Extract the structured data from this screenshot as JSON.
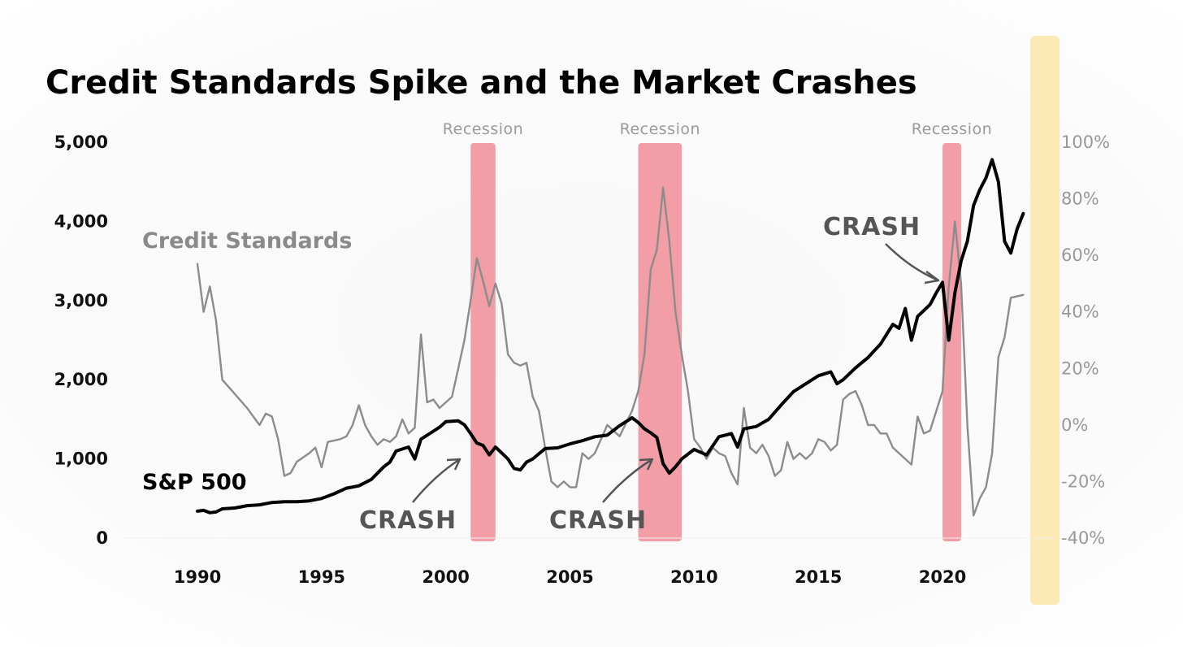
{
  "chart_data": {
    "type": "line",
    "title": "Credit Standards Spike and the Market Crashes",
    "x_ticks": [
      "1990",
      "1995",
      "2000",
      "2005",
      "2010",
      "2015",
      "2020"
    ],
    "y_left_ticks": [
      "0",
      "1,000",
      "2,000",
      "3,000",
      "4,000",
      "5,000"
    ],
    "y_left_values": [
      0,
      1000,
      2000,
      3000,
      4000,
      5000
    ],
    "ylim_left": [
      0,
      5000
    ],
    "y_right_ticks": [
      "-40%",
      "-20%",
      "0%",
      "20%",
      "40%",
      "60%",
      "80%",
      "100%"
    ],
    "y_right_values": [
      -40,
      -20,
      0,
      20,
      40,
      60,
      80,
      100
    ],
    "ylim_right": [
      -40,
      100
    ],
    "xlim": [
      1988,
      2023.5
    ],
    "grid": false,
    "recessions": [
      {
        "label": "Recession",
        "start": 2001.0,
        "end": 2002.0
      },
      {
        "label": "Recession",
        "start": 2007.75,
        "end": 2009.5
      },
      {
        "label": "Recession",
        "start": 2020.0,
        "end": 2020.75
      }
    ],
    "series": [
      {
        "name": "Credit Standards",
        "axis": "right",
        "color": "#8c8c8c",
        "points": [
          [
            1990.0,
            57
          ],
          [
            1990.25,
            40
          ],
          [
            1990.5,
            49
          ],
          [
            1990.75,
            37
          ],
          [
            1991.0,
            16
          ],
          [
            1991.5,
            11
          ],
          [
            1992.0,
            6
          ],
          [
            1992.5,
            0
          ],
          [
            1992.75,
            4
          ],
          [
            1993.0,
            3
          ],
          [
            1993.25,
            -5
          ],
          [
            1993.5,
            -18
          ],
          [
            1993.75,
            -17
          ],
          [
            1994.0,
            -13
          ],
          [
            1994.5,
            -10
          ],
          [
            1994.75,
            -8
          ],
          [
            1995.0,
            -15
          ],
          [
            1995.25,
            -6
          ],
          [
            1995.75,
            -5
          ],
          [
            1996.0,
            -4
          ],
          [
            1996.25,
            0
          ],
          [
            1996.5,
            7
          ],
          [
            1996.75,
            0
          ],
          [
            1997.0,
            -4
          ],
          [
            1997.25,
            -7
          ],
          [
            1997.5,
            -5
          ],
          [
            1997.75,
            -6
          ],
          [
            1998.0,
            -4
          ],
          [
            1998.25,
            2
          ],
          [
            1998.5,
            -3
          ],
          [
            1998.75,
            -1
          ],
          [
            1999.0,
            32
          ],
          [
            1999.25,
            8
          ],
          [
            1999.5,
            9
          ],
          [
            1999.75,
            6
          ],
          [
            2000.0,
            8
          ],
          [
            2000.25,
            10
          ],
          [
            2000.5,
            20
          ],
          [
            2000.75,
            30
          ],
          [
            2001.0,
            44
          ],
          [
            2001.25,
            59
          ],
          [
            2001.5,
            51
          ],
          [
            2001.75,
            42
          ],
          [
            2002.0,
            50
          ],
          [
            2002.25,
            43
          ],
          [
            2002.5,
            25
          ],
          [
            2002.75,
            22
          ],
          [
            2003.0,
            21
          ],
          [
            2003.25,
            22
          ],
          [
            2003.5,
            10
          ],
          [
            2003.75,
            5
          ],
          [
            2004.0,
            -8
          ],
          [
            2004.25,
            -20
          ],
          [
            2004.5,
            -22
          ],
          [
            2004.75,
            -20
          ],
          [
            2005.0,
            -22
          ],
          [
            2005.25,
            -22
          ],
          [
            2005.5,
            -10
          ],
          [
            2005.75,
            -12
          ],
          [
            2006.0,
            -10
          ],
          [
            2006.25,
            -5
          ],
          [
            2006.5,
            0
          ],
          [
            2006.75,
            -2
          ],
          [
            2007.0,
            -4
          ],
          [
            2007.5,
            5
          ],
          [
            2007.75,
            12
          ],
          [
            2008.0,
            25
          ],
          [
            2008.25,
            55
          ],
          [
            2008.5,
            62
          ],
          [
            2008.75,
            84
          ],
          [
            2009.0,
            65
          ],
          [
            2009.25,
            40
          ],
          [
            2009.5,
            25
          ],
          [
            2009.75,
            12
          ],
          [
            2010.0,
            -5
          ],
          [
            2010.25,
            -8
          ],
          [
            2010.5,
            -12
          ],
          [
            2010.75,
            -8
          ],
          [
            2011.0,
            -10
          ],
          [
            2011.25,
            -11
          ],
          [
            2011.5,
            -17
          ],
          [
            2011.75,
            -21
          ],
          [
            2012.0,
            6
          ],
          [
            2012.25,
            -8
          ],
          [
            2012.5,
            -10
          ],
          [
            2012.75,
            -7
          ],
          [
            2013.0,
            -11
          ],
          [
            2013.25,
            -18
          ],
          [
            2013.5,
            -16
          ],
          [
            2013.75,
            -6
          ],
          [
            2014.0,
            -12
          ],
          [
            2014.25,
            -10
          ],
          [
            2014.5,
            -12
          ],
          [
            2014.75,
            -10
          ],
          [
            2015.0,
            -5
          ],
          [
            2015.25,
            -6
          ],
          [
            2015.5,
            -9
          ],
          [
            2015.75,
            -7
          ],
          [
            2016.0,
            9
          ],
          [
            2016.25,
            11
          ],
          [
            2016.5,
            12
          ],
          [
            2016.75,
            7
          ],
          [
            2017.0,
            0
          ],
          [
            2017.25,
            0
          ],
          [
            2017.5,
            -3
          ],
          [
            2017.75,
            -3
          ],
          [
            2018.0,
            -8
          ],
          [
            2018.25,
            -10
          ],
          [
            2018.5,
            -12
          ],
          [
            2018.75,
            -14
          ],
          [
            2019.0,
            3
          ],
          [
            2019.25,
            -3
          ],
          [
            2019.5,
            -2
          ],
          [
            2019.75,
            5
          ],
          [
            2020.0,
            12
          ],
          [
            2020.25,
            49
          ],
          [
            2020.5,
            72
          ],
          [
            2020.75,
            50
          ],
          [
            2021.0,
            0
          ],
          [
            2021.25,
            -32
          ],
          [
            2021.5,
            -26
          ],
          [
            2021.75,
            -22
          ],
          [
            2022.0,
            -10
          ],
          [
            2022.25,
            24
          ],
          [
            2022.5,
            31
          ],
          [
            2022.75,
            45
          ],
          [
            2023.25,
            46
          ]
        ]
      },
      {
        "name": "S&P 500",
        "axis": "left",
        "color": "#000000",
        "points": [
          [
            1990.0,
            340
          ],
          [
            1990.25,
            350
          ],
          [
            1990.5,
            320
          ],
          [
            1990.75,
            330
          ],
          [
            1991.0,
            370
          ],
          [
            1991.5,
            380
          ],
          [
            1992.0,
            410
          ],
          [
            1992.5,
            420
          ],
          [
            1993.0,
            450
          ],
          [
            1993.5,
            460
          ],
          [
            1994.0,
            460
          ],
          [
            1994.5,
            470
          ],
          [
            1995.0,
            500
          ],
          [
            1995.5,
            560
          ],
          [
            1996.0,
            630
          ],
          [
            1996.5,
            660
          ],
          [
            1997.0,
            740
          ],
          [
            1997.5,
            900
          ],
          [
            1997.75,
            960
          ],
          [
            1998.0,
            1100
          ],
          [
            1998.5,
            1150
          ],
          [
            1998.75,
            1000
          ],
          [
            1999.0,
            1250
          ],
          [
            1999.5,
            1350
          ],
          [
            1999.75,
            1400
          ],
          [
            2000.0,
            1470
          ],
          [
            2000.5,
            1480
          ],
          [
            2000.75,
            1430
          ],
          [
            2001.0,
            1320
          ],
          [
            2001.25,
            1200
          ],
          [
            2001.5,
            1170
          ],
          [
            2001.75,
            1050
          ],
          [
            2002.0,
            1150
          ],
          [
            2002.5,
            1000
          ],
          [
            2002.75,
            880
          ],
          [
            2003.0,
            860
          ],
          [
            2003.25,
            960
          ],
          [
            2003.5,
            1000
          ],
          [
            2004.0,
            1130
          ],
          [
            2004.5,
            1140
          ],
          [
            2005.0,
            1190
          ],
          [
            2005.5,
            1230
          ],
          [
            2006.0,
            1280
          ],
          [
            2006.5,
            1300
          ],
          [
            2007.0,
            1420
          ],
          [
            2007.5,
            1520
          ],
          [
            2007.75,
            1460
          ],
          [
            2008.0,
            1380
          ],
          [
            2008.25,
            1330
          ],
          [
            2008.5,
            1270
          ],
          [
            2008.75,
            940
          ],
          [
            2009.0,
            820
          ],
          [
            2009.25,
            900
          ],
          [
            2009.5,
            1000
          ],
          [
            2010.0,
            1120
          ],
          [
            2010.5,
            1050
          ],
          [
            2011.0,
            1280
          ],
          [
            2011.5,
            1320
          ],
          [
            2011.75,
            1150
          ],
          [
            2012.0,
            1380
          ],
          [
            2012.5,
            1410
          ],
          [
            2013.0,
            1500
          ],
          [
            2013.5,
            1680
          ],
          [
            2014.0,
            1850
          ],
          [
            2014.5,
            1950
          ],
          [
            2015.0,
            2050
          ],
          [
            2015.5,
            2100
          ],
          [
            2015.75,
            1950
          ],
          [
            2016.0,
            2000
          ],
          [
            2016.5,
            2150
          ],
          [
            2017.0,
            2280
          ],
          [
            2017.5,
            2450
          ],
          [
            2018.0,
            2700
          ],
          [
            2018.25,
            2650
          ],
          [
            2018.5,
            2900
          ],
          [
            2018.75,
            2500
          ],
          [
            2019.0,
            2800
          ],
          [
            2019.5,
            2950
          ],
          [
            2019.75,
            3100
          ],
          [
            2020.0,
            3230
          ],
          [
            2020.25,
            2500
          ],
          [
            2020.5,
            3100
          ],
          [
            2020.75,
            3500
          ],
          [
            2021.0,
            3750
          ],
          [
            2021.25,
            4200
          ],
          [
            2021.5,
            4400
          ],
          [
            2021.75,
            4550
          ],
          [
            2022.0,
            4780
          ],
          [
            2022.25,
            4500
          ],
          [
            2022.5,
            3750
          ],
          [
            2022.75,
            3600
          ],
          [
            2023.0,
            3900
          ],
          [
            2023.25,
            4100
          ]
        ]
      }
    ],
    "annotations": [
      {
        "text": "Credit Standards",
        "role": "series-label"
      },
      {
        "text": "S&P 500",
        "role": "series-label"
      },
      {
        "text": "CRASH",
        "target_x": 2001.0
      },
      {
        "text": "CRASH",
        "target_x": 2008.0
      },
      {
        "text": "CRASH",
        "target_x": 2020.0
      }
    ],
    "colors": {
      "recession_band": "#f07a86",
      "highlight_band": "#fde9b3",
      "credit_line": "#8c8c8c",
      "sp_line": "#000000",
      "crash_text": "#555555"
    }
  }
}
